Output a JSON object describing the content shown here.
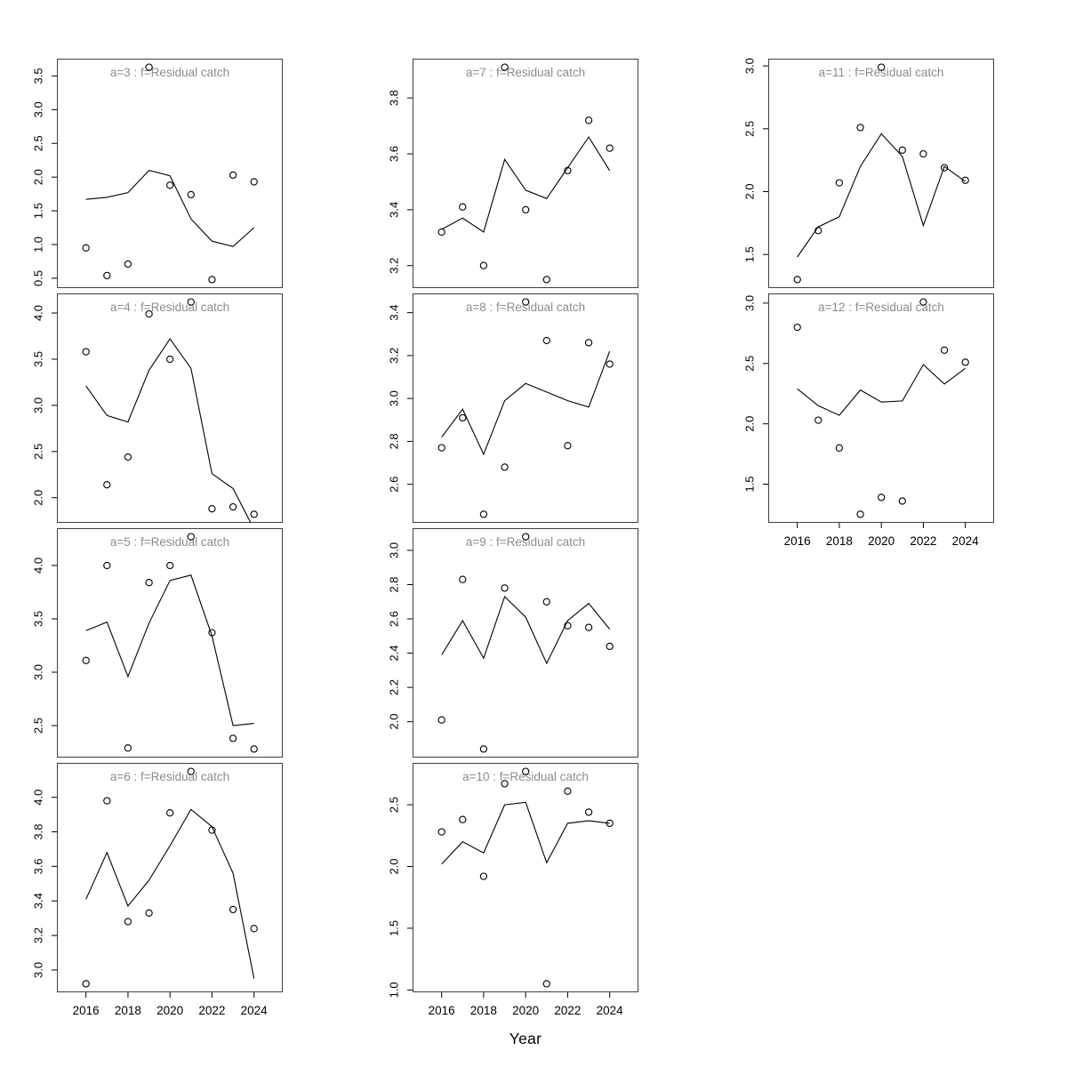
{
  "figure": {
    "description": "Grid of residual-catch diagnostic plots by age class a=3..a=12, observed points with fitted line, 2016-2024"
  },
  "chart_data": {
    "type": "line+scatter",
    "xlabel": "Year",
    "years": [
      2016,
      2017,
      2018,
      2019,
      2020,
      2021,
      2022,
      2023,
      2024
    ],
    "x_tick_years": [
      2016,
      2018,
      2020,
      2022,
      2024
    ],
    "x_tick_labels": [
      "2016",
      "2018",
      "2020",
      "2022",
      "2024"
    ],
    "legend": "none",
    "grid": "off",
    "style": {
      "title_color": "#8c8c8c",
      "line_color": "#000000",
      "point_color": "#000000",
      "border_color": "#404040",
      "tick_color": "#000000",
      "background": "#ffffff"
    },
    "panels": [
      {
        "id": "a-3",
        "row": 0,
        "col": 0,
        "x_axis": false,
        "title": "a=3  :  f=Residual catch",
        "y_ticks": [
          0.5,
          1.0,
          1.5,
          2.0,
          2.5,
          3.0,
          3.5
        ],
        "points": [
          0.95,
          0.54,
          0.71,
          3.63,
          1.88,
          1.74,
          0.48,
          2.03,
          1.93
        ],
        "line": [
          1.67,
          1.7,
          1.77,
          2.1,
          2.02,
          1.38,
          1.05,
          0.97,
          1.25
        ]
      },
      {
        "id": "a-4",
        "row": 1,
        "col": 0,
        "x_axis": false,
        "title": "a=4  :  f=Residual catch",
        "y_ticks": [
          2.0,
          2.5,
          3.0,
          3.5,
          4.0
        ],
        "points": [
          3.58,
          2.14,
          2.44,
          3.99,
          3.5,
          4.12,
          1.88,
          1.9,
          1.82
        ],
        "line": [
          3.21,
          2.89,
          2.82,
          3.38,
          3.72,
          3.4,
          2.26,
          2.1,
          1.66
        ]
      },
      {
        "id": "a-5",
        "row": 2,
        "col": 0,
        "x_axis": false,
        "title": "a=5  :  f=Residual catch",
        "y_ticks": [
          2.5,
          3.0,
          3.5,
          4.0
        ],
        "points": [
          3.11,
          4.0,
          2.29,
          3.84,
          4.0,
          4.27,
          3.37,
          2.38,
          2.28
        ],
        "line": [
          3.39,
          3.47,
          2.96,
          3.46,
          3.86,
          3.91,
          3.34,
          2.5,
          2.52
        ]
      },
      {
        "id": "a-6",
        "row": 3,
        "col": 0,
        "x_axis": true,
        "title": "a=6  :  f=Residual catch",
        "y_ticks": [
          3.0,
          3.2,
          3.4,
          3.6,
          3.8,
          4.0
        ],
        "points": [
          2.92,
          3.98,
          3.28,
          3.33,
          3.91,
          4.15,
          3.81,
          3.35,
          3.24
        ],
        "line": [
          3.41,
          3.68,
          3.37,
          3.52,
          3.72,
          3.93,
          3.83,
          3.56,
          2.95
        ]
      },
      {
        "id": "a-7",
        "row": 0,
        "col": 1,
        "x_axis": false,
        "title": "a=7  :  f=Residual catch",
        "y_ticks": [
          3.2,
          3.4,
          3.6,
          3.8
        ],
        "points": [
          3.32,
          3.41,
          3.2,
          3.91,
          3.4,
          3.15,
          3.54,
          3.72,
          3.62
        ],
        "line": [
          3.33,
          3.37,
          3.32,
          3.58,
          3.47,
          3.44,
          3.55,
          3.66,
          3.54
        ]
      },
      {
        "id": "a-8",
        "row": 1,
        "col": 1,
        "x_axis": false,
        "title": "a=8  :  f=Residual catch",
        "y_ticks": [
          2.6,
          2.8,
          3.0,
          3.2,
          3.4
        ],
        "points": [
          2.77,
          2.91,
          2.46,
          2.68,
          3.45,
          3.27,
          2.78,
          3.26,
          3.16
        ],
        "line": [
          2.82,
          2.95,
          2.74,
          2.99,
          3.07,
          3.03,
          2.99,
          2.96,
          3.22
        ]
      },
      {
        "id": "a-9",
        "row": 2,
        "col": 1,
        "x_axis": false,
        "title": "a=9  :  f=Residual catch",
        "y_ticks": [
          2.0,
          2.2,
          2.4,
          2.6,
          2.8,
          3.0
        ],
        "points": [
          2.01,
          2.83,
          1.84,
          2.78,
          3.08,
          2.7,
          2.56,
          2.55,
          2.44
        ],
        "line": [
          2.39,
          2.59,
          2.37,
          2.73,
          2.61,
          2.34,
          2.59,
          2.69,
          2.54
        ]
      },
      {
        "id": "a-10",
        "row": 3,
        "col": 1,
        "x_axis": true,
        "title": "a=10  :  f=Residual catch",
        "y_ticks": [
          1.0,
          1.5,
          2.0,
          2.5
        ],
        "points": [
          2.28,
          2.38,
          1.92,
          2.67,
          2.77,
          1.05,
          2.61,
          2.44,
          2.35
        ],
        "line": [
          2.02,
          2.2,
          2.11,
          2.5,
          2.52,
          2.03,
          2.35,
          2.37,
          2.35
        ]
      },
      {
        "id": "a-11",
        "row": 0,
        "col": 2,
        "x_axis": false,
        "title": "a=11  :  f=Residual catch",
        "y_ticks": [
          1.5,
          2.0,
          2.5,
          3.0
        ],
        "points": [
          1.3,
          1.69,
          2.07,
          2.51,
          2.99,
          2.33,
          2.3,
          2.19,
          2.09
        ],
        "line": [
          1.48,
          1.72,
          1.8,
          2.2,
          2.46,
          2.28,
          1.73,
          2.2,
          2.08
        ]
      },
      {
        "id": "a-12",
        "row": 1,
        "col": 2,
        "x_axis": true,
        "title": "a=12  :  f=Residual catch",
        "y_ticks": [
          1.5,
          2.0,
          2.5,
          3.0
        ],
        "points": [
          2.8,
          2.03,
          1.8,
          1.25,
          1.39,
          1.36,
          3.01,
          2.61,
          2.51
        ],
        "line": [
          2.29,
          2.15,
          2.07,
          2.28,
          2.18,
          2.19,
          2.49,
          2.33,
          2.46
        ]
      }
    ]
  }
}
